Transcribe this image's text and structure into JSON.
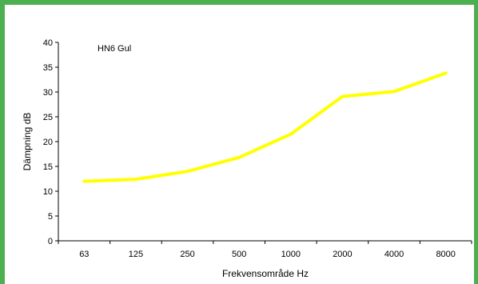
{
  "chart_data": {
    "type": "line",
    "title": "",
    "annotation": "HN6 Gul",
    "xlabel": "Frekvensområde Hz",
    "ylabel": "Dämpning dB",
    "categories": [
      "63",
      "125",
      "250",
      "500",
      "1000",
      "2000",
      "4000",
      "8000"
    ],
    "series": [
      {
        "values": [
          12.0,
          12.4,
          14.0,
          16.8,
          21.5,
          29.1,
          30.1,
          33.8
        ]
      }
    ],
    "ylim": [
      0,
      40
    ],
    "yticks": [
      0,
      5,
      10,
      15,
      20,
      25,
      30,
      35,
      40
    ],
    "grid": false,
    "legend": "none",
    "colors": {
      "series": "#ffff00",
      "frame": "#4caf50",
      "axis": "#000000"
    }
  }
}
